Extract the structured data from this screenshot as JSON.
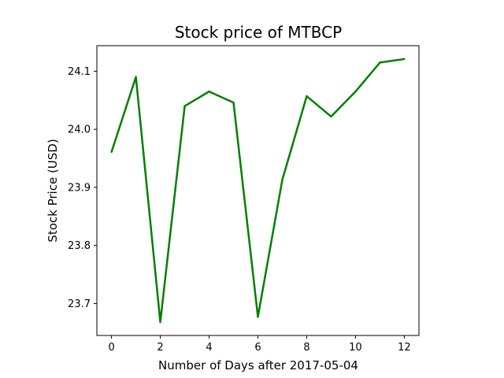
{
  "chart_data": {
    "type": "line",
    "title": "Stock price of MTBCP",
    "xlabel": "Number of Days after 2017-05-04",
    "ylabel": "Stock Price (USD)",
    "x": [
      0,
      1,
      2,
      3,
      4,
      5,
      6,
      7,
      8,
      9,
      10,
      11,
      12
    ],
    "y": [
      23.961,
      24.09,
      23.668,
      24.04,
      24.065,
      24.046,
      23.677,
      23.913,
      24.057,
      24.022,
      24.065,
      24.115,
      24.121
    ],
    "xlim": [
      -0.6,
      12.6
    ],
    "ylim": [
      23.645,
      24.144
    ],
    "xticks": [
      "0",
      "2",
      "4",
      "6",
      "8",
      "10",
      "12"
    ],
    "yticks": [
      "23.7",
      "23.8",
      "23.9",
      "24.0",
      "24.1"
    ],
    "grid": false,
    "legend": "none",
    "line_color": "#008000"
  }
}
